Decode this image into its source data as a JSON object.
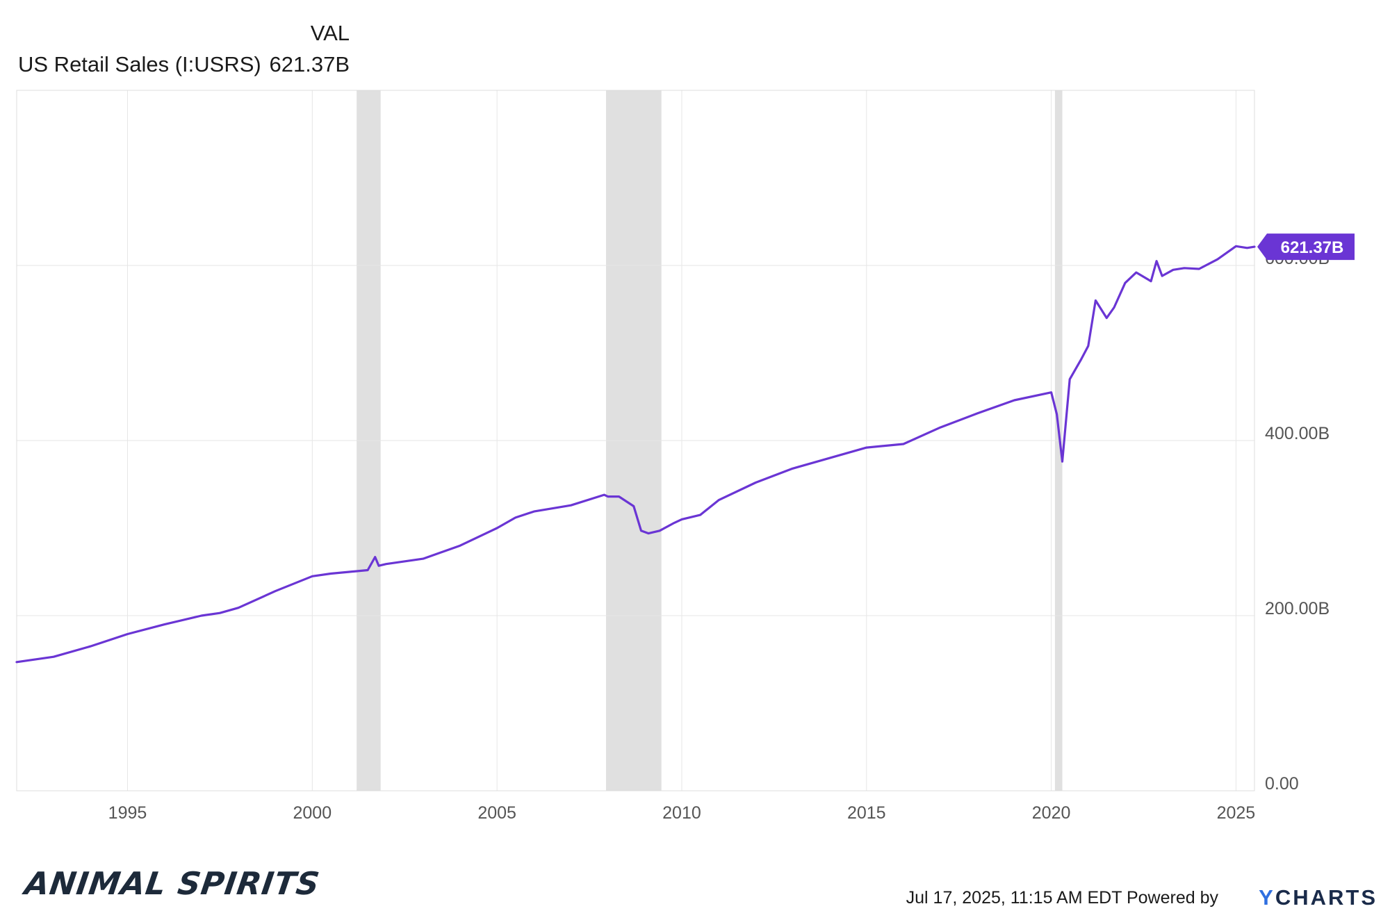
{
  "legend": {
    "header": "VAL",
    "series_name": "US Retail Sales (I:USRS)",
    "series_value": "621.37B"
  },
  "footer": {
    "timestamp": "Jul 17, 2025, 11:15 AM EDT Powered by",
    "ycharts_y": "Y",
    "ycharts_rest": "CHARTS",
    "animal_spirits": "ANIMAL SPIRITS"
  },
  "colors": {
    "line": "#6a35d4",
    "recession": "#e0e0e0",
    "grid": "#e6e6e6",
    "axis_text": "#555555"
  },
  "chart_data": {
    "type": "line",
    "title": "",
    "xlabel": "",
    "ylabel": "",
    "xlim": [
      1992.0,
      2025.5
    ],
    "ylim": [
      0,
      800
    ],
    "x_ticks": [
      "1995",
      "2000",
      "2005",
      "2010",
      "2015",
      "2020",
      "2025"
    ],
    "y_ticks": [
      "0.00",
      "200.00B",
      "400.00B",
      "600.00B"
    ],
    "y_tick_values": [
      0,
      200,
      400,
      600
    ],
    "end_label": "621.37B",
    "recessions": [
      [
        2001.2,
        2001.85
      ],
      [
        2007.95,
        2009.45
      ],
      [
        2020.1,
        2020.3
      ]
    ],
    "series": [
      {
        "name": "US Retail Sales (I:USRS)",
        "x": [
          1992.0,
          1993.0,
          1994.0,
          1995.0,
          1996.0,
          1997.0,
          1997.5,
          1998.0,
          1999.0,
          2000.0,
          2000.5,
          2001.0,
          2001.5,
          2001.7,
          2001.8,
          2002.0,
          2003.0,
          2004.0,
          2005.0,
          2005.5,
          2006.0,
          2007.0,
          2007.9,
          2008.0,
          2008.3,
          2008.7,
          2008.9,
          2009.1,
          2009.4,
          2009.8,
          2010.0,
          2010.5,
          2011.0,
          2012.0,
          2013.0,
          2014.0,
          2015.0,
          2016.0,
          2017.0,
          2018.0,
          2019.0,
          2020.0,
          2020.15,
          2020.3,
          2020.5,
          2020.8,
          2021.0,
          2021.2,
          2021.5,
          2021.7,
          2022.0,
          2022.3,
          2022.7,
          2022.85,
          2023.0,
          2023.3,
          2023.6,
          2024.0,
          2024.5,
          2025.0,
          2025.3,
          2025.5
        ],
        "values": [
          147,
          153,
          165,
          179,
          190,
          200,
          203,
          209,
          228,
          245,
          248,
          250,
          252,
          267,
          257,
          259,
          265,
          280,
          300,
          312,
          319,
          326,
          338,
          336,
          336,
          325,
          297,
          294,
          297,
          306,
          310,
          315,
          332,
          352,
          368,
          380,
          392,
          396,
          415,
          431,
          446,
          455,
          430,
          376,
          470,
          492,
          508,
          560,
          540,
          552,
          580,
          592,
          582,
          605,
          588,
          595,
          597,
          596,
          607,
          622,
          620,
          621.37
        ]
      }
    ]
  }
}
